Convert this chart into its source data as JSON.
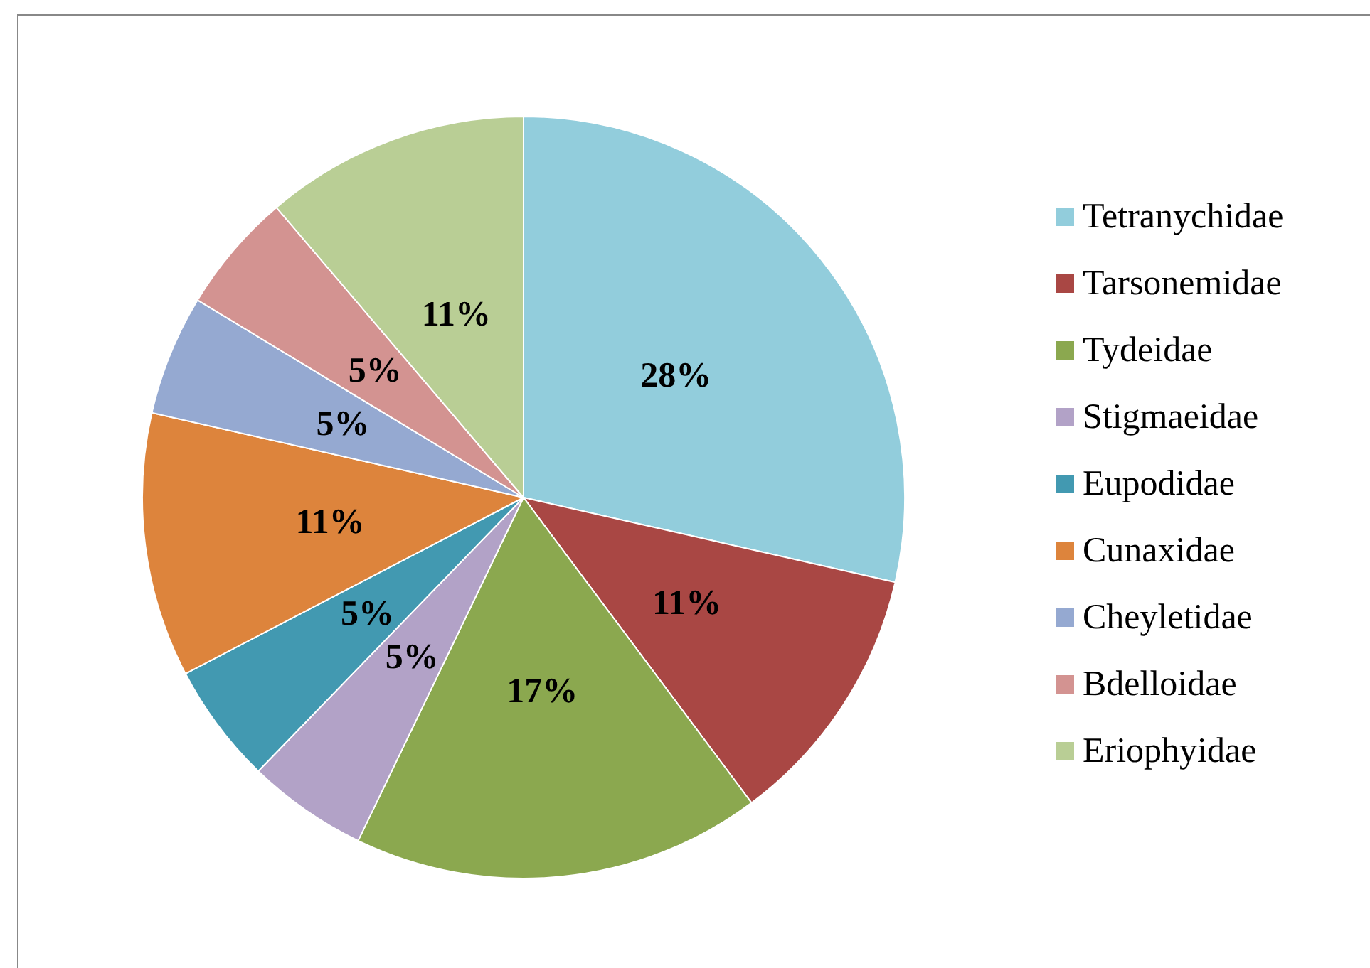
{
  "chart_data": {
    "type": "pie",
    "categories": [
      "Tetranychidae",
      "Tarsonemidae",
      "Tydeidae",
      "Stigmaeidae",
      "Eupodidae",
      "Cunaxidae",
      "Cheyletidae",
      "Bdelloidae",
      "Eriophyidae"
    ],
    "values": [
      28,
      11,
      17,
      5,
      5,
      11,
      5,
      5,
      11
    ],
    "value_labels": [
      "28%",
      "11%",
      "17%",
      "5%",
      "5%",
      "11%",
      "5%",
      "5%",
      "11%"
    ],
    "colors": [
      "#92cddc",
      "#a94744",
      "#8ba84f",
      "#b2a2c7",
      "#4299b1",
      "#dd843c",
      "#95a9d1",
      "#d39391",
      "#b9ce95"
    ],
    "legend": "right"
  }
}
